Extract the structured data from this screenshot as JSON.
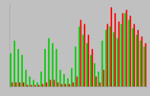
{
  "chart_data": {
    "type": "bar",
    "categories": [
      null,
      null,
      null,
      null,
      null,
      null,
      null,
      null,
      null,
      null,
      null,
      null,
      null,
      null,
      null,
      null,
      null,
      null,
      null,
      null,
      null,
      null,
      null,
      null,
      null,
      null,
      null,
      null,
      null,
      null,
      null,
      null,
      null,
      null,
      null,
      null
    ],
    "series": [
      {
        "color": "#00cc00",
        "values": [
          40,
          55,
          45,
          38,
          20,
          12,
          8,
          5,
          18,
          45,
          58,
          52,
          45,
          20,
          15,
          10,
          22,
          48,
          72,
          62,
          52,
          38,
          28,
          18,
          55,
          68,
          72,
          65,
          58,
          75,
          88,
          80,
          70,
          62,
          55,
          48
        ]
      },
      {
        "color": "#ff0000",
        "values": [
          5,
          5,
          5,
          5,
          2,
          2,
          2,
          2,
          3,
          5,
          8,
          8,
          5,
          3,
          3,
          3,
          5,
          12,
          80,
          75,
          62,
          45,
          12,
          5,
          20,
          75,
          95,
          88,
          78,
          88,
          92,
          85,
          75,
          68,
          60,
          52
        ]
      }
    ],
    "ylim": [
      0,
      100
    ],
    "tick_labels": false,
    "grid": false
  }
}
